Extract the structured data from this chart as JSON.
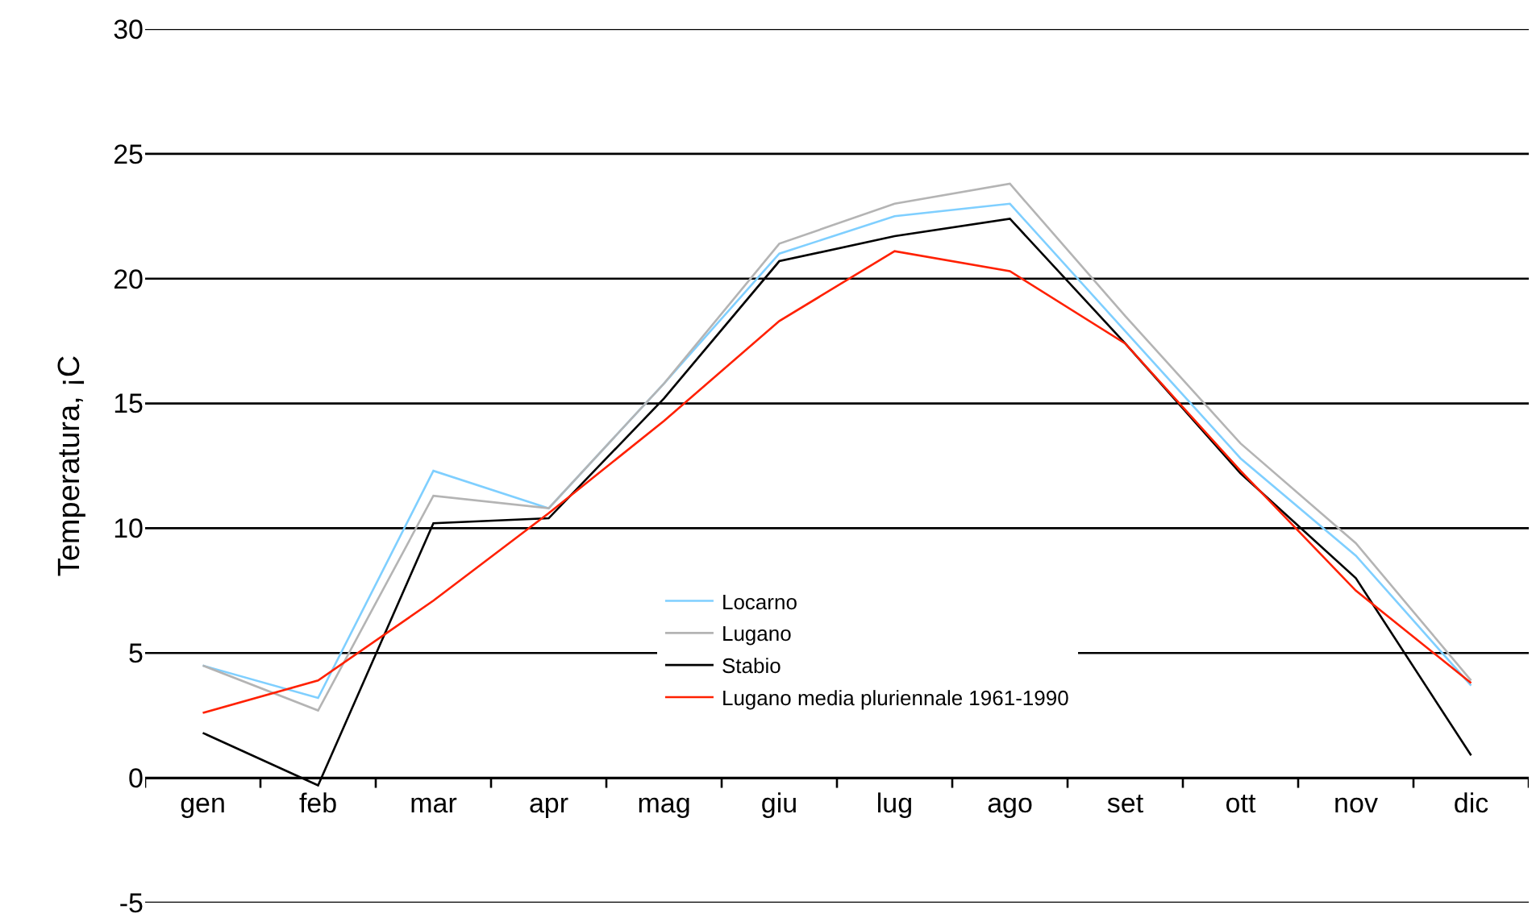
{
  "chart_data": {
    "type": "line",
    "ylabel": "Temperatura, ¡C",
    "categories": [
      "gen",
      "feb",
      "mar",
      "apr",
      "mag",
      "giu",
      "lug",
      "ago",
      "set",
      "ott",
      "nov",
      "dic"
    ],
    "series": [
      {
        "name": "Locarno",
        "color": "#7fcfff",
        "values": [
          4.5,
          3.2,
          12.3,
          10.8,
          15.8,
          21.0,
          22.5,
          23.0,
          17.9,
          12.8,
          8.9,
          3.7
        ]
      },
      {
        "name": "Lugano",
        "color": "#b4b4b4",
        "values": [
          4.5,
          2.7,
          11.3,
          10.8,
          15.8,
          21.4,
          23.0,
          23.8,
          18.5,
          13.4,
          9.4,
          3.9
        ]
      },
      {
        "name": "Stabio",
        "color": "#000000",
        "values": [
          1.8,
          -0.3,
          10.2,
          10.4,
          15.2,
          20.7,
          21.7,
          22.4,
          17.4,
          12.2,
          8.0,
          0.9
        ]
      },
      {
        "name": "Lugano media pluriennale 1961-1990",
        "color": "#ff2000",
        "values": [
          2.6,
          3.9,
          7.1,
          10.6,
          14.3,
          18.3,
          21.1,
          20.3,
          17.4,
          12.3,
          7.5,
          3.8
        ]
      }
    ],
    "ylim": [
      -5,
      30
    ],
    "yticks": [
      -5,
      0,
      5,
      10,
      15,
      20,
      25,
      30
    ],
    "grid": "y",
    "legend": "bottom",
    "marker": "none",
    "line_style": "solid"
  }
}
